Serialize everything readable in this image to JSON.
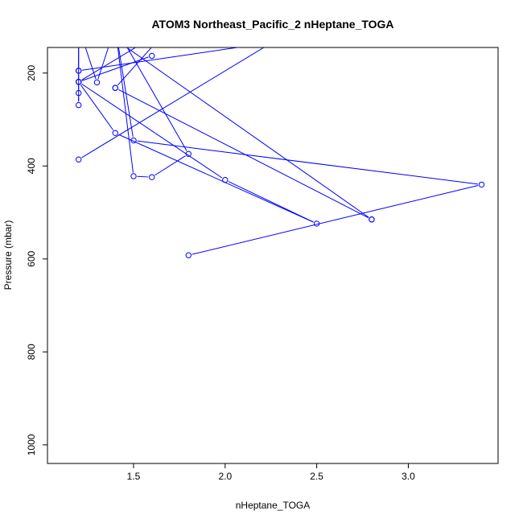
{
  "chart_data": {
    "type": "line",
    "title": "ATOM3 Northeast_Pacific_2 nHeptane_TOGA",
    "xlabel": "nHeptane_TOGA",
    "ylabel": "Pressure (mbar)",
    "xlim": [
      1.03,
      3.49
    ],
    "ylim": [
      1040,
      145
    ],
    "y_reversed": true,
    "x_ticks": [
      {
        "value": 1.5,
        "label": "1.5"
      },
      {
        "value": 2.0,
        "label": "2.0"
      },
      {
        "value": 2.5,
        "label": "2.5"
      },
      {
        "value": 3.0,
        "label": "3.0"
      }
    ],
    "y_ticks": [
      {
        "value": 200,
        "label": "200"
      },
      {
        "value": 400,
        "label": "400"
      },
      {
        "value": 600,
        "label": "600"
      },
      {
        "value": 800,
        "label": "800"
      },
      {
        "value": 1000,
        "label": "1000"
      }
    ],
    "grid": false,
    "series": [
      {
        "color": "#0000ff",
        "marker": "open-circle",
        "points": [
          {
            "x": 1.2,
            "y": 100
          },
          {
            "x": 1.2,
            "y": 195
          },
          {
            "x": 1.2,
            "y": 219
          },
          {
            "x": 1.2,
            "y": 243
          },
          {
            "x": 1.2,
            "y": 269
          },
          {
            "x": 1.2,
            "y": 100
          },
          {
            "x": 1.3,
            "y": 220
          },
          {
            "x": 1.4,
            "y": 100
          },
          {
            "x": 1.8,
            "y": 374
          },
          {
            "x": 1.6,
            "y": 424
          },
          {
            "x": 1.5,
            "y": 422
          },
          {
            "x": 1.4,
            "y": 100
          },
          {
            "x": 1.5,
            "y": 345
          },
          {
            "x": 3.4,
            "y": 440
          },
          {
            "x": 1.8,
            "y": 592
          }
        ]
      },
      {
        "color": "#0000ff",
        "marker": "open-circle",
        "points": [
          {
            "x": 1.6,
            "y": 163
          },
          {
            "x": 1.2,
            "y": 219
          },
          {
            "x": 2.0,
            "y": 430
          },
          {
            "x": 2.5,
            "y": 524
          },
          {
            "x": 1.4,
            "y": 329
          },
          {
            "x": 1.2,
            "y": 219
          },
          {
            "x": 1.7,
            "y": 100
          }
        ]
      },
      {
        "color": "#0000ff",
        "marker": "open-circle",
        "points": [
          {
            "x": 1.2,
            "y": 195
          },
          {
            "x": 2.5,
            "y": 120
          }
        ]
      },
      {
        "color": "#0000ff",
        "marker": "open-circle",
        "points": [
          {
            "x": 1.2,
            "y": 386
          },
          {
            "x": 2.4,
            "y": 100
          }
        ]
      },
      {
        "color": "#0000ff",
        "marker": "open-circle",
        "points": [
          {
            "x": 1.4,
            "y": 232
          },
          {
            "x": 1.7,
            "y": 100
          }
        ]
      },
      {
        "color": "#0000ff",
        "marker": "open-circle",
        "points": [
          {
            "x": 1.4,
            "y": 232
          },
          {
            "x": 2.8,
            "y": 515
          }
        ]
      },
      {
        "color": "#0000ff",
        "marker": "open-circle",
        "points": [
          {
            "x": 2.8,
            "y": 515
          },
          {
            "x": 1.3,
            "y": 100
          }
        ]
      }
    ]
  }
}
